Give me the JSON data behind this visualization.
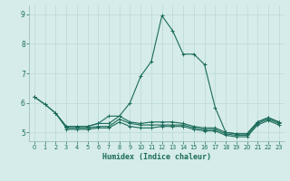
{
  "x": [
    0,
    1,
    2,
    3,
    4,
    5,
    6,
    7,
    8,
    9,
    10,
    11,
    12,
    13,
    14,
    15,
    16,
    17,
    18,
    19,
    20,
    21,
    22,
    23
  ],
  "line_peak": [
    6.2,
    null,
    null,
    null,
    null,
    null,
    null,
    null,
    null,
    6.0,
    6.9,
    7.4,
    8.95,
    8.45,
    null,
    null,
    null,
    null,
    null,
    null,
    null,
    null,
    null,
    null
  ],
  "line_high": [
    6.2,
    null,
    null,
    null,
    null,
    null,
    null,
    null,
    null,
    null,
    null,
    null,
    null,
    null,
    7.65,
    7.65,
    7.3,
    5.85,
    null,
    null,
    null,
    null,
    null,
    null
  ],
  "line_main": [
    6.2,
    null,
    5.65,
    5.2,
    5.2,
    5.2,
    5.3,
    5.3,
    5.55,
    6.0,
    6.9,
    7.4,
    8.95,
    8.45,
    7.65,
    7.65,
    7.3,
    5.85,
    5.0,
    4.95,
    4.95,
    5.35,
    5.5,
    5.35
  ],
  "line_flat1": [
    6.2,
    5.95,
    5.65,
    5.2,
    5.2,
    5.2,
    5.3,
    5.55,
    5.55,
    5.35,
    5.3,
    5.35,
    5.35,
    5.35,
    5.3,
    5.2,
    5.15,
    5.15,
    5.0,
    4.95,
    4.95,
    5.35,
    5.5,
    5.35
  ],
  "line_flat2": [
    6.2,
    5.95,
    5.65,
    5.15,
    5.15,
    5.15,
    5.2,
    5.2,
    5.45,
    5.3,
    5.25,
    5.25,
    5.25,
    5.25,
    5.25,
    5.15,
    5.1,
    5.1,
    4.95,
    4.9,
    4.9,
    5.3,
    5.45,
    5.3
  ],
  "line_flat3": [
    null,
    null,
    null,
    5.1,
    5.1,
    5.1,
    5.15,
    5.15,
    5.35,
    5.2,
    5.15,
    5.15,
    5.2,
    5.2,
    5.2,
    5.1,
    5.05,
    5.05,
    4.9,
    4.85,
    4.85,
    5.25,
    5.4,
    5.25
  ],
  "bg_color": "#d6ecea",
  "grid_color": "#b8d8d5",
  "line_color": "#1a6b5a",
  "xlabel": "Humidex (Indice chaleur)",
  "ylim": [
    4.7,
    9.3
  ],
  "xlim": [
    -0.5,
    23.5
  ],
  "yticks": [
    5,
    6,
    7,
    8,
    9
  ],
  "xticks": [
    0,
    1,
    2,
    3,
    4,
    5,
    6,
    7,
    8,
    9,
    10,
    11,
    12,
    13,
    14,
    15,
    16,
    17,
    18,
    19,
    20,
    21,
    22,
    23
  ]
}
